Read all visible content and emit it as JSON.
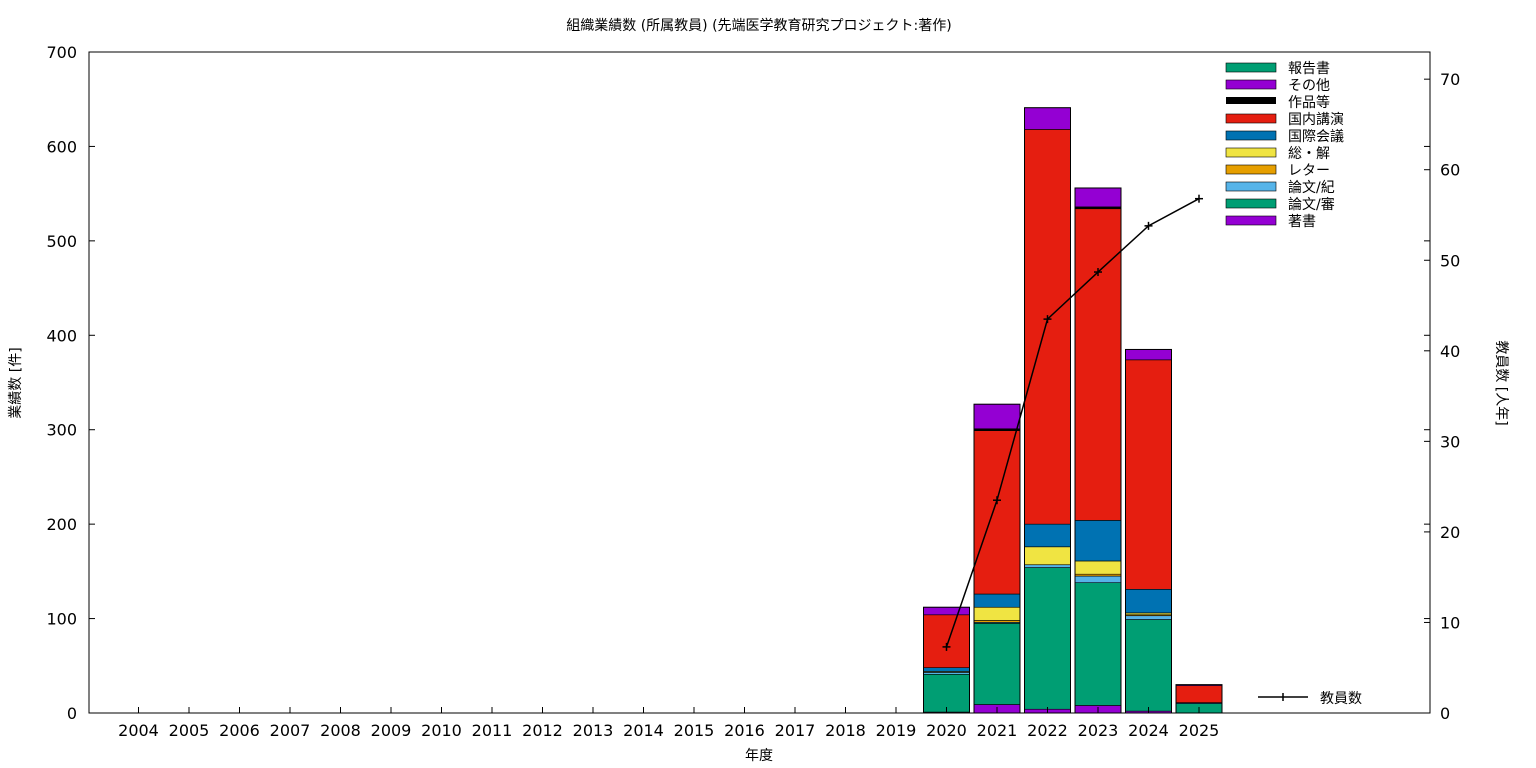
{
  "chart_data": {
    "type": "bar",
    "stacked": true,
    "title": "組織業績数 (所属教員) (先端医学教育研究プロジェクト:著作)",
    "xlabel": "年度",
    "ylabel": "業績数 [件]",
    "y2label": "教員数 [人年]",
    "ylim": [
      0,
      700
    ],
    "y2lim": [
      0,
      73
    ],
    "yticks": [
      "0",
      "100",
      "200",
      "300",
      "400",
      "500",
      "600",
      "700"
    ],
    "y2ticks": [
      "0",
      "10",
      "20",
      "30",
      "40",
      "50",
      "60",
      "70"
    ],
    "categories": [
      "2004",
      "2005",
      "2006",
      "2007",
      "2008",
      "2009",
      "2010",
      "2011",
      "2012",
      "2013",
      "2014",
      "2015",
      "2016",
      "2017",
      "2018",
      "2019",
      "2020",
      "2021",
      "2022",
      "2023",
      "2024",
      "2025"
    ],
    "series": [
      {
        "name": "著書",
        "color": "#9400d3",
        "values": [
          0,
          0,
          0,
          0,
          0,
          0,
          0,
          0,
          0,
          0,
          0,
          0,
          0,
          0,
          0,
          0,
          1,
          9,
          4,
          8,
          2,
          0
        ]
      },
      {
        "name": "論文/審",
        "color": "#009e73",
        "values": [
          0,
          0,
          0,
          0,
          0,
          0,
          0,
          0,
          0,
          0,
          0,
          0,
          0,
          0,
          0,
          0,
          40,
          86,
          150,
          130,
          97,
          10
        ]
      },
      {
        "name": "論文/紀",
        "color": "#56b4e9",
        "values": [
          0,
          0,
          0,
          0,
          0,
          0,
          0,
          0,
          0,
          0,
          0,
          0,
          0,
          0,
          0,
          0,
          2,
          1,
          3,
          7,
          4,
          0
        ]
      },
      {
        "name": "レター",
        "color": "#e69f00",
        "values": [
          0,
          0,
          0,
          0,
          0,
          0,
          0,
          0,
          0,
          0,
          0,
          0,
          0,
          0,
          0,
          0,
          0,
          2,
          0,
          2,
          1,
          0
        ]
      },
      {
        "name": "総・解",
        "color": "#f0e442",
        "values": [
          0,
          0,
          0,
          0,
          0,
          0,
          0,
          0,
          0,
          0,
          0,
          0,
          0,
          0,
          0,
          0,
          1,
          14,
          19,
          14,
          2,
          0
        ]
      },
      {
        "name": "国際会議",
        "color": "#0072b2",
        "values": [
          0,
          0,
          0,
          0,
          0,
          0,
          0,
          0,
          0,
          0,
          0,
          0,
          0,
          0,
          0,
          0,
          4,
          14,
          24,
          43,
          25,
          1
        ]
      },
      {
        "name": "国内講演",
        "color": "#e51e10",
        "values": [
          0,
          0,
          0,
          0,
          0,
          0,
          0,
          0,
          0,
          0,
          0,
          0,
          0,
          0,
          0,
          0,
          56,
          173,
          418,
          330,
          243,
          18
        ]
      },
      {
        "name": "作品等",
        "color": "#000000",
        "values": [
          0,
          0,
          0,
          0,
          0,
          0,
          0,
          0,
          0,
          0,
          0,
          0,
          0,
          0,
          0,
          0,
          0,
          2,
          0,
          2,
          0,
          0
        ]
      },
      {
        "name": "その他",
        "color": "#9400d3",
        "values": [
          0,
          0,
          0,
          0,
          0,
          0,
          0,
          0,
          0,
          0,
          0,
          0,
          0,
          0,
          0,
          0,
          8,
          26,
          23,
          20,
          11,
          1
        ]
      },
      {
        "name": "報告書",
        "color": "#009e73",
        "values": [
          0,
          0,
          0,
          0,
          0,
          0,
          0,
          0,
          0,
          0,
          0,
          0,
          0,
          0,
          0,
          0,
          0,
          0,
          0,
          0,
          0,
          0
        ]
      }
    ],
    "line_series": {
      "name": "教員数",
      "axis": "y2",
      "color": "#000000",
      "x": [
        "2020",
        "2021",
        "2022",
        "2023",
        "2024",
        "2025"
      ],
      "values": [
        7.3,
        23.5,
        43.5,
        48.7,
        53.8,
        56.8
      ]
    },
    "legend_position": "top-right",
    "grid": false
  }
}
